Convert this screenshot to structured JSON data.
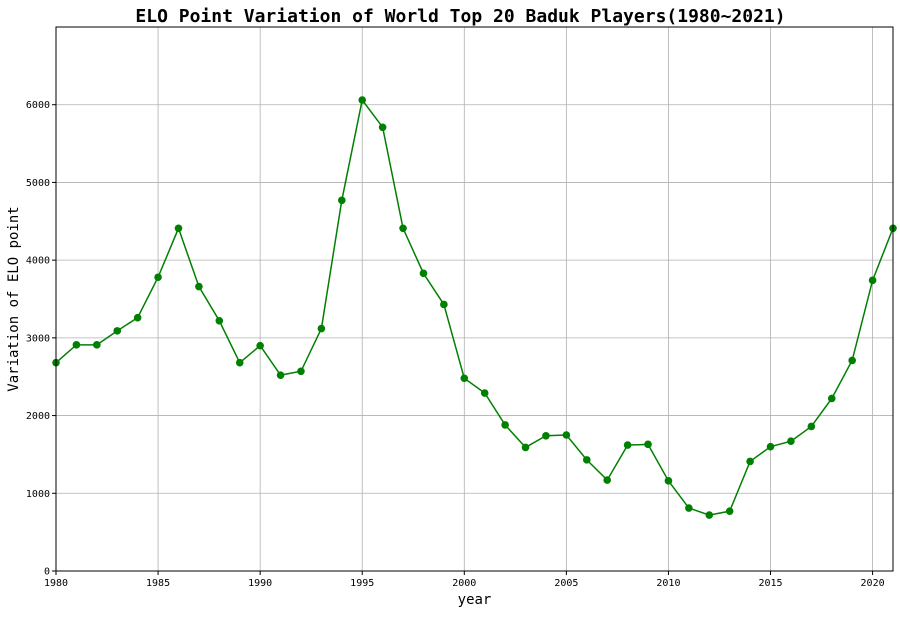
{
  "chart_data": {
    "type": "line",
    "title": "ELO Point Variation of World Top 20 Baduk Players(1980~2021)",
    "xlabel": "year",
    "ylabel": "Variation of ELO point",
    "xlim": [
      1980,
      2021
    ],
    "ylim": [
      0,
      7000
    ],
    "xticks": [
      1980,
      1985,
      1990,
      1995,
      2000,
      2005,
      2010,
      2015,
      2020
    ],
    "yticks": [
      0,
      1000,
      2000,
      3000,
      4000,
      5000,
      6000
    ],
    "grid": true,
    "color": "#008000",
    "marker": "circle",
    "series": [
      {
        "x": [
          1980,
          1981,
          1982,
          1983,
          1984,
          1985,
          1986,
          1987,
          1988,
          1989,
          1990,
          1991,
          1992,
          1993,
          1994,
          1995,
          1996,
          1997,
          1998,
          1999,
          2000,
          2001,
          2002,
          2003,
          2004,
          2005,
          2006,
          2007,
          2008,
          2009,
          2010,
          2011,
          2012,
          2013,
          2014,
          2015,
          2016,
          2017,
          2018,
          2019,
          2020,
          2021
        ],
        "values": [
          2680,
          2910,
          2910,
          3090,
          3260,
          3780,
          4410,
          3660,
          3220,
          2680,
          2900,
          2520,
          2570,
          3120,
          4770,
          6060,
          5710,
          4410,
          3830,
          3430,
          2480,
          2290,
          1880,
          1590,
          1740,
          1750,
          1430,
          1170,
          1620,
          1630,
          1160,
          810,
          720,
          770,
          1410,
          1600,
          1670,
          1860,
          2220,
          2710,
          3740,
          4410
        ]
      }
    ]
  }
}
